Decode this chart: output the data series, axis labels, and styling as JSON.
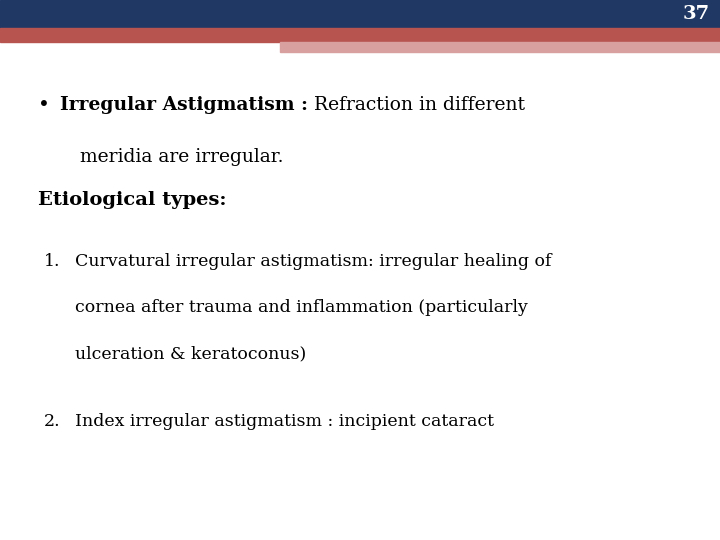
{
  "slide_number": "37",
  "background_color": "#ffffff",
  "header_bar_color": "#1F3864",
  "header_bar2_color": "#B85450",
  "header_bar3_color": "#D9A0A0",
  "slide_number_color": "#ffffff",
  "slide_number_fontsize": 14,
  "bullet_bold": "Irregular Astigmatism :",
  "bullet_normal": " Refraction in different",
  "bullet_line2": "meridia are irregular.",
  "section_heading": "Etiological types:",
  "item1_line1": "Curvatural irregular astigmatism: irregular healing of",
  "item1_line2": "cornea after trauma and inflammation (particularly",
  "item1_line3": "ulceration & keratoconus)",
  "item2_line1": "Index irregular astigmatism : incipient cataract",
  "font_family": "serif",
  "text_color": "#000000",
  "main_fontsize": 13.5,
  "section_fontsize": 14,
  "item_fontsize": 12.5
}
